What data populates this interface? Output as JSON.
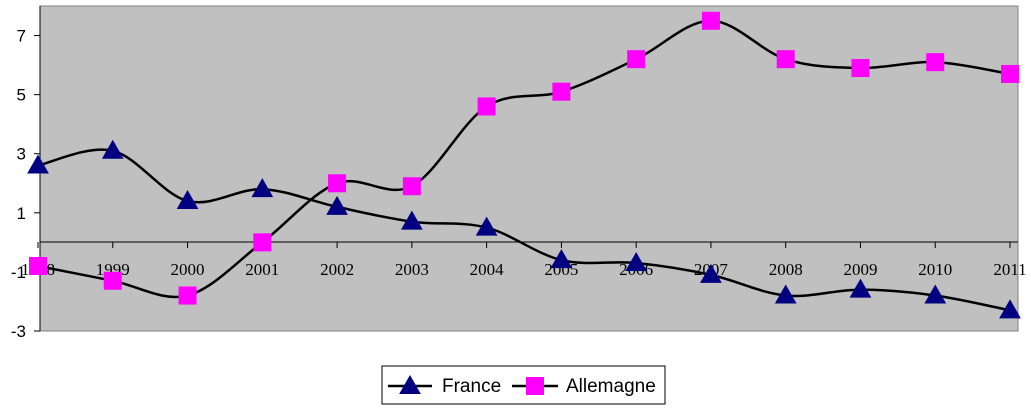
{
  "chart_data": {
    "type": "line",
    "title": "",
    "xlabel": "",
    "ylabel": "",
    "categories": [
      "1998",
      "1999",
      "2000",
      "2001",
      "2002",
      "2003",
      "2004",
      "2005",
      "2006",
      "2007",
      "2008",
      "2009",
      "2010",
      "2011"
    ],
    "y_ticks": [
      "-3",
      "-1",
      "1",
      "3",
      "5",
      "7"
    ],
    "ylim": [
      -3,
      8
    ],
    "grid": false,
    "legend_position": "bottom",
    "plot_background": "#c0c0c0",
    "series": [
      {
        "name": "France",
        "color": "#000080",
        "line_color": "#000000",
        "marker": "triangle",
        "values": [
          2.6,
          3.1,
          1.4,
          1.8,
          1.2,
          0.7,
          0.5,
          -0.6,
          -0.7,
          -1.1,
          -1.8,
          -1.6,
          -1.8,
          -2.3
        ]
      },
      {
        "name": "Allemagne",
        "color": "#ff00ff",
        "line_color": "#000000",
        "marker": "square",
        "values": [
          -0.8,
          -1.3,
          -1.8,
          0.0,
          2.0,
          1.9,
          4.6,
          5.1,
          6.2,
          7.5,
          6.2,
          5.9,
          6.1,
          5.7
        ]
      }
    ]
  }
}
